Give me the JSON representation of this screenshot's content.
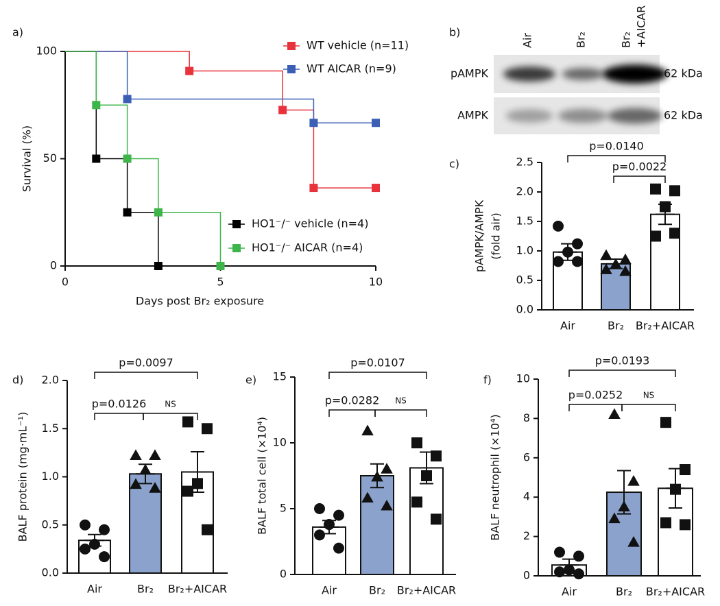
{
  "chart_data": [
    {
      "type": "survival",
      "panel": "a)",
      "xlabel": "Days post Br₂ exposure",
      "ylabel": "Survival (%)",
      "xlim": [
        0,
        10
      ],
      "ylim": [
        0,
        100
      ],
      "xticks": [
        0,
        5,
        10
      ],
      "yticks": [
        0,
        50,
        100
      ],
      "series": [
        {
          "name": "WT vehicle (n=11)",
          "color": "#e8323c",
          "x": [
            0,
            4,
            7,
            8,
            10
          ],
          "values": [
            100,
            90.9,
            72.7,
            36.4,
            36.4
          ]
        },
        {
          "name": "WT AICAR (n=9)",
          "color": "#3a5fb5",
          "x": [
            0,
            2,
            8,
            10
          ],
          "values": [
            100,
            77.8,
            66.7,
            66.7
          ]
        },
        {
          "name": "HO1⁻/⁻ vehicle (n=4)",
          "color": "#000000",
          "x": [
            0,
            1,
            2,
            3
          ],
          "values": [
            100,
            50,
            25,
            0
          ]
        },
        {
          "name": "HO1⁻/⁻ AICAR  (n=4)",
          "color": "#3db54a",
          "x": [
            0,
            1,
            2,
            3,
            5
          ],
          "values": [
            100,
            75,
            50,
            25,
            0
          ]
        }
      ]
    },
    {
      "type": "blot",
      "panel": "b)",
      "lanes": [
        [
          "Air"
        ],
        [
          "Br₂"
        ],
        [
          "Br₂",
          "+AICAR"
        ]
      ],
      "rows": [
        {
          "name": "pAMPK",
          "size": "62 kDa"
        },
        {
          "name": "AMPK",
          "size": "62 kDa"
        }
      ]
    },
    {
      "type": "bar",
      "panel": "c)",
      "ylabel": [
        "pAMPK/AMPK",
        "(fold air)"
      ],
      "categories": [
        "Air",
        "Br₂",
        "Br₂+AICAR"
      ],
      "bar_colors": [
        "#ffffff",
        "#8ba3cc",
        "#ffffff"
      ],
      "markers": [
        "circle",
        "triangle",
        "square"
      ],
      "values": [
        0.98,
        0.78,
        1.62
      ],
      "errors": [
        0.14,
        0.08,
        0.17
      ],
      "points": [
        [
          1.42,
          1.12,
          0.98,
          0.82,
          0.82
        ],
        [
          0.92,
          0.85,
          0.77,
          0.68,
          0.65
        ],
        [
          2.05,
          2.02,
          1.75,
          1.25,
          1.3
        ]
      ],
      "ylim": [
        0,
        2.5
      ],
      "yticks": [
        {
          "value": 0,
          "label": "0.0"
        },
        0.5,
        {
          "value": 1,
          "label": "1.0"
        },
        1.5,
        {
          "value": 2,
          "label": "2.0"
        },
        2.5
      ],
      "brackets": [
        {
          "from": 0,
          "to": 2,
          "label": "p=0.0140"
        },
        {
          "from": 1,
          "to": 2,
          "label": "p=0.0022"
        }
      ]
    },
    {
      "type": "bar",
      "panel": "d)",
      "ylabel": [
        "BALF protein (mg·mL⁻¹)"
      ],
      "categories": [
        "Air",
        "Br₂",
        "Br₂+AICAR"
      ],
      "bar_colors": [
        "#ffffff",
        "#8ba3cc",
        "#ffffff"
      ],
      "markers": [
        "circle",
        "triangle",
        "square"
      ],
      "values": [
        0.34,
        1.03,
        1.05
      ],
      "errors": [
        0.06,
        0.1,
        0.21
      ],
      "points": [
        [
          0.5,
          0.45,
          0.3,
          0.25,
          0.17
        ],
        [
          1.22,
          1.22,
          1.07,
          0.92,
          0.88
        ],
        [
          1.57,
          1.5,
          0.93,
          0.85,
          0.45
        ]
      ],
      "ylim": [
        0,
        2
      ],
      "yticks": [
        {
          "value": 0,
          "label": "0.0"
        },
        0.5,
        {
          "value": 1,
          "label": "1.0"
        },
        1.5,
        {
          "value": 2,
          "label": "2.0"
        }
      ],
      "brackets": [
        {
          "from": 0,
          "to": 1,
          "label": "p=0.0126"
        },
        {
          "from": 1,
          "to": 2,
          "label": "NS"
        },
        {
          "from": 0,
          "to": 2,
          "label": "p=0.0097"
        }
      ]
    },
    {
      "type": "bar",
      "panel": "e)",
      "ylabel": [
        "BALF total cell (×10⁴)"
      ],
      "categories": [
        "Air",
        "Br₂",
        "Br₂+AICAR"
      ],
      "bar_colors": [
        "#ffffff",
        "#8ba3cc",
        "#ffffff"
      ],
      "markers": [
        "circle",
        "triangle",
        "square"
      ],
      "values": [
        3.6,
        7.5,
        8.1
      ],
      "errors": [
        0.5,
        0.9,
        1.2
      ],
      "points": [
        [
          5.0,
          4.5,
          3.8,
          3.0,
          2.0
        ],
        [
          10.9,
          8.0,
          7.4,
          5.8,
          5.2
        ],
        [
          10.0,
          9.0,
          7.5,
          5.5,
          4.2
        ]
      ],
      "ylim": [
        0,
        15
      ],
      "yticks": [
        0,
        5,
        10,
        15
      ],
      "brackets": [
        {
          "from": 0,
          "to": 1,
          "label": "p=0.0282"
        },
        {
          "from": 1,
          "to": 2,
          "label": "NS"
        },
        {
          "from": 0,
          "to": 2,
          "label": "p=0.0107"
        }
      ]
    },
    {
      "type": "bar",
      "panel": "f)",
      "ylabel": [
        "BALF neutrophil (×10⁴)"
      ],
      "categories": [
        "Air",
        "Br₂",
        "Br₂+AICAR"
      ],
      "bar_colors": [
        "#ffffff",
        "#8ba3cc",
        "#ffffff"
      ],
      "markers": [
        "circle",
        "triangle",
        "square"
      ],
      "values": [
        0.55,
        4.25,
        4.45
      ],
      "errors": [
        0.3,
        1.1,
        1.0
      ],
      "points": [
        [
          1.2,
          1.0,
          0.3,
          0.2,
          0.1
        ],
        [
          8.2,
          4.8,
          3.5,
          2.9,
          1.7
        ],
        [
          7.8,
          5.4,
          4.4,
          2.7,
          2.6
        ]
      ],
      "ylim": [
        0,
        10
      ],
      "yticks": [
        0,
        2,
        4,
        6,
        8,
        10
      ],
      "brackets": [
        {
          "from": 0,
          "to": 1,
          "label": "p=0.0252"
        },
        {
          "from": 1,
          "to": 2,
          "label": "NS"
        },
        {
          "from": 0,
          "to": 2,
          "label": "p=0.0193"
        }
      ]
    }
  ]
}
